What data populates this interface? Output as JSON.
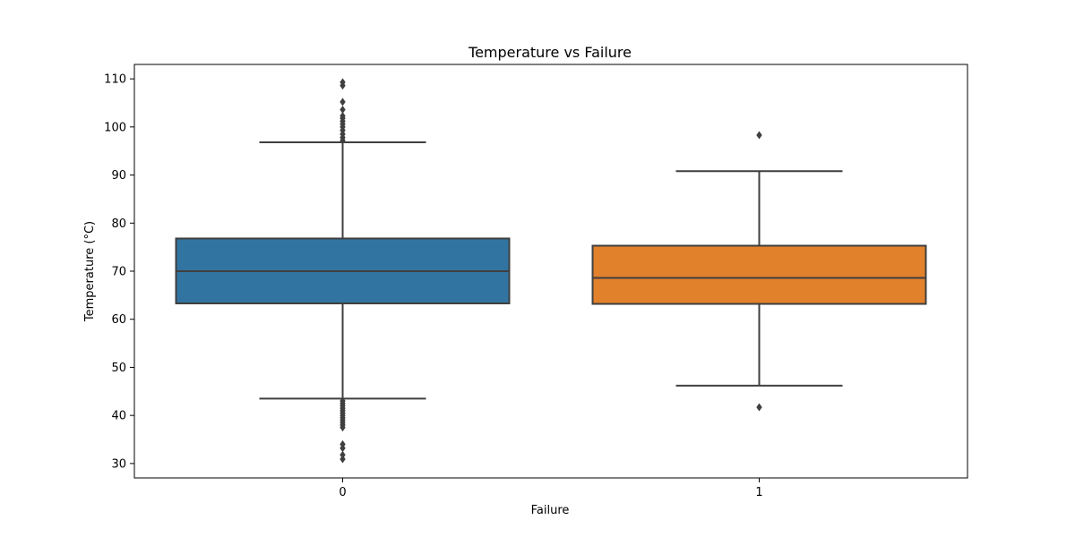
{
  "chart_data": {
    "type": "box",
    "title": "Temperature vs Failure",
    "xlabel": "Failure",
    "ylabel": "Temperature (°C)",
    "ylim": [
      27,
      113
    ],
    "yticks": [
      30,
      40,
      50,
      60,
      70,
      80,
      90,
      100,
      110
    ],
    "grid": false,
    "categories": [
      "0",
      "1"
    ],
    "boxes": [
      {
        "category": "0",
        "color": "#3274a1",
        "whisker_low": 43.5,
        "q1": 63.3,
        "median": 70.0,
        "q3": 76.8,
        "whisker_high": 96.8,
        "outliers": [
          97.2,
          97.8,
          98.5,
          99.3,
          100.0,
          100.6,
          101.2,
          101.8,
          102.3,
          103.6,
          105.2,
          108.6,
          109.3,
          43.0,
          42.5,
          42.0,
          41.5,
          41.0,
          40.5,
          40.0,
          39.5,
          39.0,
          38.5,
          38.0,
          37.5,
          34.0,
          33.2,
          31.8,
          30.9
        ]
      },
      {
        "category": "1",
        "color": "#e1812c",
        "whisker_low": 46.2,
        "q1": 63.2,
        "median": 68.6,
        "q3": 75.3,
        "whisker_high": 90.8,
        "outliers": [
          98.3,
          41.7
        ]
      }
    ]
  }
}
